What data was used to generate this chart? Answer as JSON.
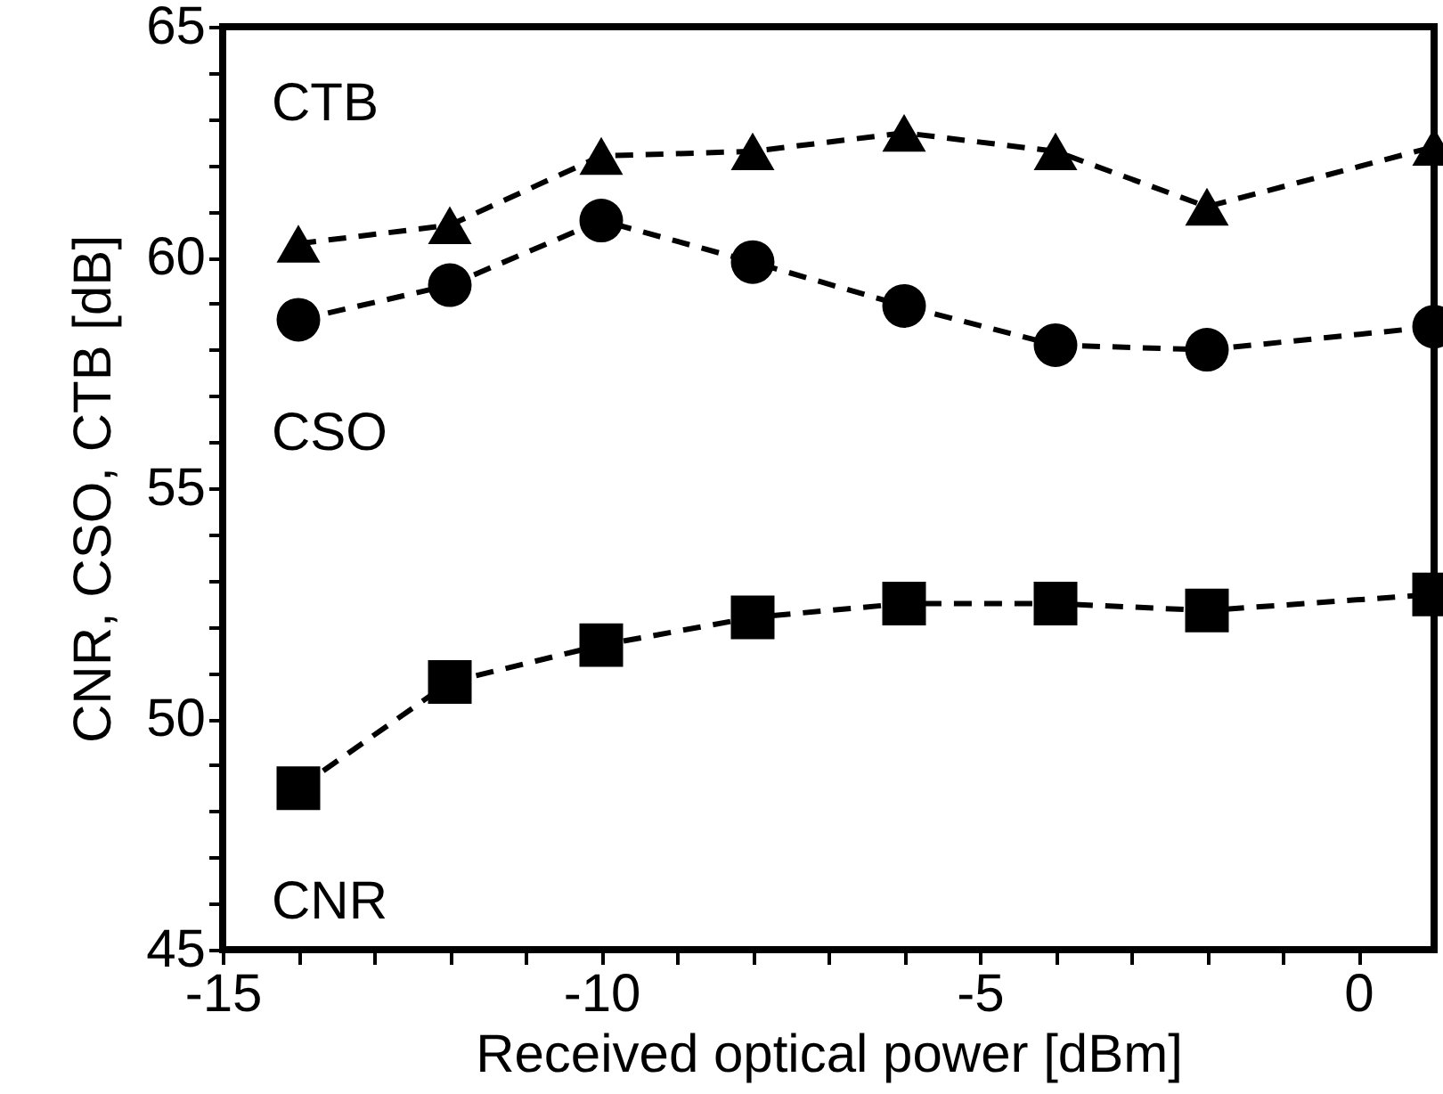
{
  "chart_data": {
    "type": "line",
    "xlabel": "Received optical power     [dBm]",
    "ylabel": "CNR, CSO, CTB    [dB]",
    "x": [
      -14,
      -12,
      -10,
      -8,
      -6,
      -4,
      -2,
      1
    ],
    "xlim": [
      -15,
      1
    ],
    "ylim": [
      45,
      65
    ],
    "xticks": [
      -15,
      {
        "value": -14,
        "label": null
      },
      {
        "value": -13,
        "label": null
      },
      {
        "value": -12,
        "label": null
      },
      {
        "value": -11,
        "label": null
      },
      -10,
      {
        "value": -9,
        "label": null
      },
      {
        "value": -8,
        "label": null
      },
      {
        "value": -7,
        "label": null
      },
      {
        "value": -6,
        "label": null
      },
      -5,
      {
        "value": -4,
        "label": null
      },
      {
        "value": -3,
        "label": null
      },
      {
        "value": -2,
        "label": null
      },
      {
        "value": -1,
        "label": null
      },
      0
    ],
    "yticks": [
      45,
      {
        "value": 46,
        "label": null
      },
      {
        "value": 47,
        "label": null
      },
      {
        "value": 48,
        "label": null
      },
      {
        "value": 49,
        "label": null
      },
      50,
      {
        "value": 51,
        "label": null
      },
      {
        "value": 52,
        "label": null
      },
      {
        "value": 53,
        "label": null
      },
      {
        "value": 54,
        "label": null
      },
      55,
      {
        "value": 56,
        "label": null
      },
      {
        "value": 57,
        "label": null
      },
      {
        "value": 58,
        "label": null
      },
      {
        "value": 59,
        "label": null
      },
      60,
      {
        "value": 61,
        "label": null
      },
      {
        "value": 62,
        "label": null
      },
      {
        "value": 63,
        "label": null
      },
      {
        "value": 64,
        "label": null
      },
      65
    ],
    "line_style": "dashed",
    "grid": false,
    "series": [
      {
        "name": "CTB",
        "color": "#000000",
        "marker": "triangle",
        "values": [
          60.3,
          60.7,
          62.2,
          62.3,
          62.7,
          62.3,
          61.1,
          62.4
        ]
      },
      {
        "name": "CSO",
        "color": "#000000",
        "marker": "circle",
        "values": [
          58.65,
          59.4,
          60.8,
          59.9,
          58.95,
          58.1,
          58.0,
          58.5
        ]
      },
      {
        "name": "CNR",
        "color": "#000000",
        "marker": "square",
        "values": [
          48.5,
          50.8,
          51.6,
          52.2,
          52.5,
          52.5,
          52.35,
          52.7
        ]
      }
    ]
  }
}
